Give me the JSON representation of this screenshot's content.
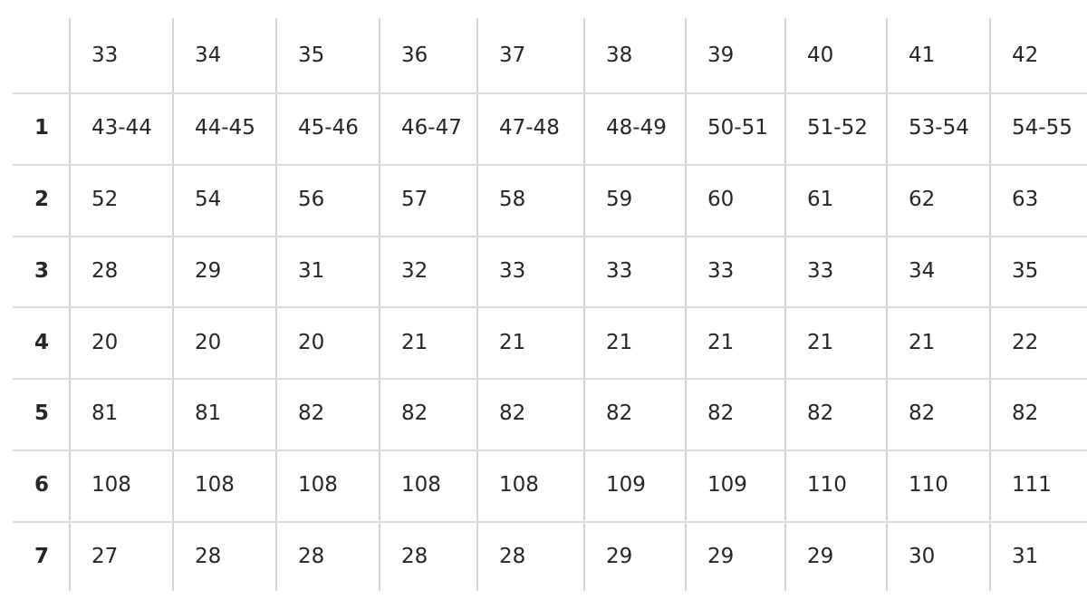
{
  "table": {
    "header": [
      "",
      "33",
      "34",
      "35",
      "36",
      "37",
      "38",
      "39",
      "40",
      "41",
      "42"
    ],
    "rows": [
      {
        "label": "1",
        "cells": [
          "43-44",
          "44-45",
          "45-46",
          "46-47",
          "47-48",
          "48-49",
          "50-51",
          "51-52",
          "53-54",
          "54-55"
        ]
      },
      {
        "label": "2",
        "cells": [
          "52",
          "54",
          "56",
          "57",
          "58",
          "59",
          "60",
          "61",
          "62",
          "63"
        ]
      },
      {
        "label": "3",
        "cells": [
          "28",
          "29",
          "31",
          "32",
          "33",
          "33",
          "33",
          "33",
          "34",
          "35"
        ]
      },
      {
        "label": "4",
        "cells": [
          "20",
          "20",
          "20",
          "21",
          "21",
          "21",
          "21",
          "21",
          "21",
          "22"
        ]
      },
      {
        "label": "5",
        "cells": [
          "81",
          "81",
          "82",
          "82",
          "82",
          "82",
          "82",
          "82",
          "82",
          "82"
        ]
      },
      {
        "label": "6",
        "cells": [
          "108",
          "108",
          "108",
          "108",
          "108",
          "109",
          "109",
          "110",
          "110",
          "111"
        ]
      },
      {
        "label": "7",
        "cells": [
          "27",
          "28",
          "28",
          "28",
          "28",
          "29",
          "29",
          "29",
          "30",
          "31"
        ]
      }
    ]
  }
}
